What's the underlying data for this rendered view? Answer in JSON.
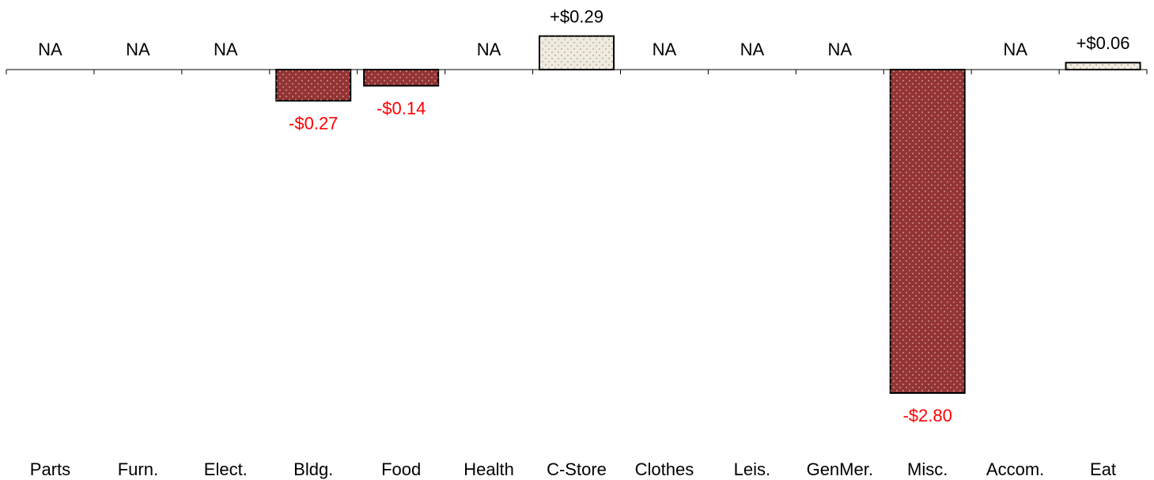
{
  "chart_data": {
    "type": "bar",
    "title": "",
    "xlabel": "",
    "ylabel": "",
    "categories": [
      "Parts",
      "Furn.",
      "Elect.",
      "Bldg.",
      "Food",
      "Health",
      "C-Store",
      "Clothes",
      "Leis.",
      "GenMer.",
      "Misc.",
      "Accom.",
      "Eat"
    ],
    "values": [
      null,
      null,
      null,
      -0.27,
      -0.14,
      null,
      0.29,
      null,
      null,
      null,
      -2.8,
      null,
      0.06
    ],
    "value_labels": [
      "NA",
      "NA",
      "NA",
      "-$0.27",
      "-$0.14",
      "NA",
      "+$0.29",
      "NA",
      "NA",
      "NA",
      "-$2.80",
      "NA",
      "+$0.06"
    ],
    "ylim": [
      -2.8,
      0.29
    ],
    "grid": false,
    "legend": "none",
    "colors": {
      "positive_fill": "#efebe1",
      "negative_fill": "#943434",
      "positive_label": "#000000",
      "negative_label": "#ff0000",
      "na_label": "#000000",
      "axis": "#000000"
    }
  }
}
